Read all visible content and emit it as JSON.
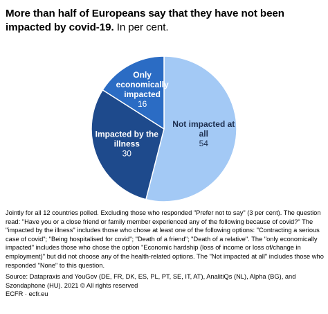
{
  "title": {
    "bold": "More than half of Europeans say that they have not been impacted by covid-19.",
    "unit": "In per cent."
  },
  "chart_data": {
    "type": "pie",
    "slices": [
      {
        "label": "Not impacted at all",
        "label_lines": [
          "Not impacted at",
          "all"
        ],
        "value": 54,
        "color": "#a3c9f5",
        "text_color": "#1e2f4f"
      },
      {
        "label": "Impacted by the illness",
        "label_lines": [
          "Impacted by the",
          "illness"
        ],
        "value": 30,
        "color": "#1e4a8c",
        "text_color": "#ffffff"
      },
      {
        "label": "Only economically impacted",
        "label_lines": [
          "Only",
          "economically",
          "impacted"
        ],
        "value": 16,
        "color": "#2b6cc4",
        "text_color": "#ffffff"
      }
    ]
  },
  "notes": {
    "text": "Jointly for all 12 countries polled. Excluding those who responded \"Prefer not to say\" (3 per cent). The question read: \"Have you or a close friend or family member experienced any of the following because of covid?\" The \"impacted by the illness\" includes those who chose at least one of the following options: \"Contracting a serious case of covid\"; \"Being hospitalised for covid\"; \"Death of a friend\"; \"Death of a relative\". The \"only economically impacted\" includes those who chose the option \"Economic hardship (loss of income or loss of/change in employment)\" but did not choose any of the health-related options. The \"Not impacted at all\" includes those who responded \"None\" to this question.",
    "source": "Source: Datapraxis and YouGov (DE, FR, DK, ES, PL, PT, SE, IT, AT), AnalitiQs (NL), Alpha (BG), and Szondaphone (HU). 2021 © All rights reserved",
    "credit": "ECFR · ecfr.eu"
  }
}
